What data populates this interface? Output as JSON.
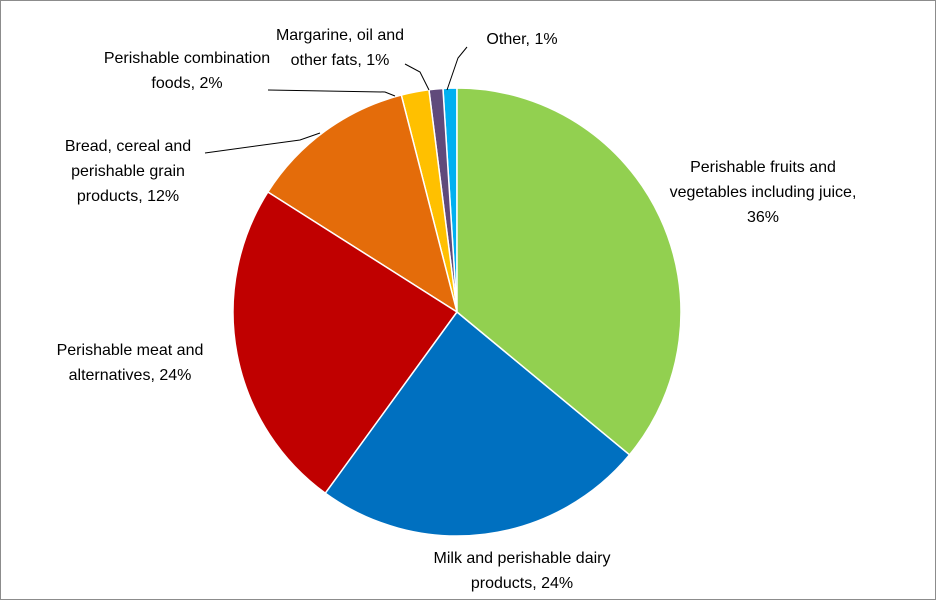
{
  "chart_data": {
    "type": "pie",
    "value_labels": [
      "Perishable fruits and vegetables including juice, 36%",
      "Milk and perishable dairy products, 24%",
      "Perishable meat and alternatives, 24%",
      "Bread, cereal and perishable grain products, 12%",
      "Perishable combination foods, 2%",
      "Margarine, oil and other fats, 1%",
      "Other, 1%"
    ],
    "values": [
      36,
      24,
      24,
      12,
      2,
      1,
      1
    ],
    "colors": [
      "#92d050",
      "#0070c0",
      "#c00000",
      "#e46c0a",
      "#ffc000",
      "#604a7b",
      "#00b0f0"
    ]
  }
}
